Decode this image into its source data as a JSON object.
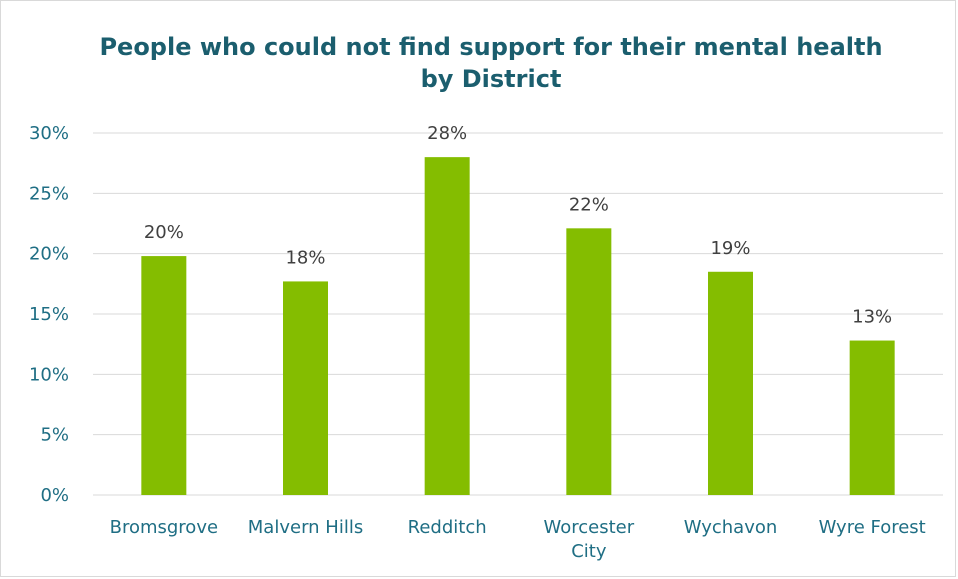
{
  "chart_data": {
    "type": "bar",
    "title": "People who could not find support for their mental health by District",
    "categories": [
      "Bromsgrove",
      "Malvern Hills",
      "Redditch",
      "Worcester City",
      "Wychavon",
      "Wyre Forest"
    ],
    "category_lines": [
      [
        "Bromsgrove"
      ],
      [
        "Malvern Hills"
      ],
      [
        "Redditch"
      ],
      [
        "Worcester",
        "City"
      ],
      [
        "Wychavon"
      ],
      [
        "Wyre Forest"
      ]
    ],
    "values": [
      19.8,
      17.7,
      28.0,
      22.1,
      18.5,
      12.8
    ],
    "data_labels": [
      "20%",
      "18%",
      "28%",
      "22%",
      "19%",
      "13%"
    ],
    "ylim": [
      0,
      30
    ],
    "yticks": [
      0,
      5,
      10,
      15,
      20,
      25,
      30
    ],
    "ytick_labels": [
      "0%",
      "5%",
      "10%",
      "15%",
      "20%",
      "25%",
      "30%"
    ],
    "xlabel": "",
    "ylabel": "",
    "grid": true,
    "legend": "none",
    "colors": {
      "bar": "#84BD00",
      "title": "#1B5E6E",
      "axis_text": "#1F6E84",
      "gridline": "#D9D9D9",
      "data_label": "#404040"
    }
  }
}
